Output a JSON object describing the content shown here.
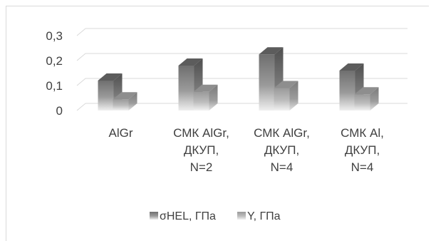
{
  "chart_data": {
    "type": "bar",
    "categories": [
      [
        "AlGr"
      ],
      [
        "СМК AlGr,",
        "ДКУП,",
        "N=2"
      ],
      [
        "СМК AlGr,",
        "ДКУП,",
        "N=4"
      ],
      [
        "СМК Al,",
        "ДКУП,",
        "N=4"
      ]
    ],
    "series": [
      {
        "name": "σHEL, ГПа",
        "values": [
          0.12,
          0.18,
          0.225,
          0.16
        ]
      },
      {
        "name": "Y, ГПа",
        "values": [
          0.045,
          0.075,
          0.09,
          0.065
        ]
      }
    ],
    "ylim": [
      0,
      0.3
    ],
    "yticks": [
      "0",
      "0,1",
      "0,2",
      "0,3"
    ],
    "ytick_values": [
      0,
      0.1,
      0.2,
      0.3
    ],
    "grid": true,
    "legend": "bottom",
    "style": "3d-column",
    "colors": {
      "series_1": "#7f7f7f",
      "series_2": "#a6a6a6",
      "grid": "#d9d9d9",
      "text": "#404040"
    }
  }
}
